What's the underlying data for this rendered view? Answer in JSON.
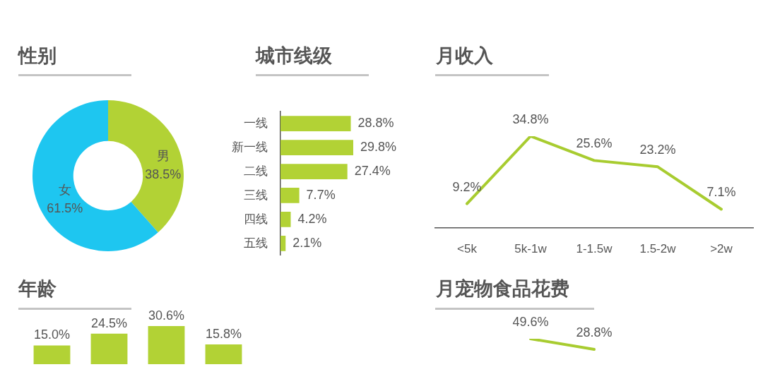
{
  "chart_data": [
    {
      "type": "donut",
      "title": "性别",
      "categories": [
        "男",
        "女"
      ],
      "values": [
        38.5,
        61.5
      ],
      "colors": [
        "#b2d235",
        "#1ec6f0"
      ],
      "value_labels": [
        "38.5%",
        "61.5%"
      ]
    },
    {
      "type": "bar",
      "title": "城市线级",
      "orientation": "horizontal",
      "categories": [
        "一线",
        "新一线",
        "二线",
        "三线",
        "四线",
        "五线"
      ],
      "values": [
        28.8,
        29.8,
        27.4,
        7.7,
        4.2,
        2.1
      ],
      "color": "#b2d235",
      "value_labels": [
        "28.8%",
        "29.8%",
        "27.4%",
        "7.7%",
        "4.2%",
        "2.1%"
      ],
      "tick_labels": "y"
    },
    {
      "type": "line",
      "title": "月收入",
      "categories": [
        "<5k",
        "5k-1w",
        "1-1.5w",
        "1.5-2w",
        ">2w"
      ],
      "values": [
        9.2,
        34.8,
        25.6,
        23.2,
        7.1
      ],
      "color": "#a8cc30",
      "marker": "none",
      "value_labels": [
        "9.2%",
        "34.8%",
        "25.6%",
        "23.2%",
        "7.1%"
      ],
      "tick_labels": "x"
    },
    {
      "type": "bar",
      "title": "年龄",
      "categories": [
        null,
        null,
        null,
        null
      ],
      "values": [
        15.0,
        24.5,
        30.6,
        15.8
      ],
      "color": "#b2d235",
      "value_labels": [
        "15.0%",
        "24.5%",
        "30.6%",
        "15.8%"
      ],
      "tick_labels": false
    },
    {
      "type": "line",
      "title": "月宠物食品花费",
      "categories": [
        null,
        null,
        null,
        null,
        null
      ],
      "values": [
        null,
        49.6,
        28.8,
        null,
        null
      ],
      "color": "#a8cc30",
      "marker": "none",
      "value_labels": [
        null,
        "49.6%",
        "28.8%",
        null,
        null
      ],
      "tick_labels": false
    }
  ]
}
